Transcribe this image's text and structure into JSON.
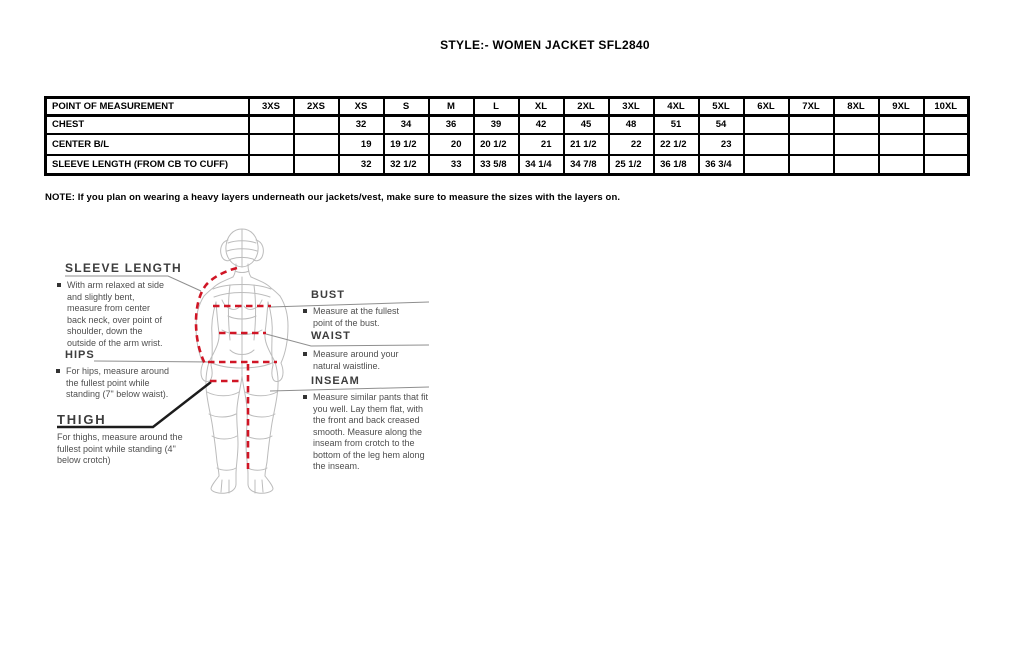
{
  "title": "STYLE:- WOMEN JACKET   SFL2840",
  "note": "NOTE: If you plan on wearing a heavy layers underneath our jackets/vest, make sure to measure the sizes with the layers on.",
  "size_chart": {
    "columns": [
      "POINT OF MEASUREMENT",
      "3XS",
      "2XS",
      "XS",
      "S",
      "M",
      "L",
      "XL",
      "2XL",
      "3XL",
      "4XL",
      "5XL",
      "6XL",
      "7XL",
      "8XL",
      "9XL",
      "10XL"
    ],
    "rows": [
      {
        "label": "CHEST",
        "values": [
          "",
          "",
          "32",
          "34",
          "36",
          "39",
          "42",
          "45",
          "48",
          "51",
          "54",
          "",
          "",
          "",
          "",
          ""
        ]
      },
      {
        "label": "CENTER B/L",
        "values": [
          "",
          "",
          "19",
          "19 1/2",
          "20",
          "20 1/2",
          "21",
          "21 1/2",
          "22",
          "22 1/2",
          "23",
          "",
          "",
          "",
          "",
          ""
        ]
      },
      {
        "label": "SLEEVE LENGTH (FROM CB TO CUFF)",
        "values": [
          "",
          "",
          "32",
          "32 1/2",
          "33",
          "33 5/8",
          "34 1/4",
          "34 7/8",
          "25 1/2",
          "36 1/8",
          "36 3/4",
          "",
          "",
          "",
          "",
          ""
        ]
      }
    ]
  },
  "measurement_guide": {
    "sleeve_length": {
      "heading": "SLEEVE LENGTH",
      "description": "With arm relaxed at side and slightly bent, measure from center back neck, over point of shoulder, down the outside of the arm wrist."
    },
    "hips": {
      "heading": "HIPS",
      "description": "For hips, measure around the fullest point while standing (7\" below waist)."
    },
    "thigh": {
      "heading": "THIGH",
      "description": "For thighs, measure around the fullest point while standing (4\" below crotch)"
    },
    "bust": {
      "heading": "BUST",
      "description": "Measure at the fullest point of the bust."
    },
    "waist": {
      "heading": "WAIST",
      "description": "Measure around your natural waistline."
    },
    "inseam": {
      "heading": "INSEAM",
      "description": "Measure similar pants that fit you well. Lay them flat, with the front and back creased smooth. Measure along the inseam from crotch to the bottom of the leg hem along the inseam."
    }
  },
  "colors": {
    "measure_line_red": "#d01525",
    "figure_gray": "#bcbcbc",
    "connector_gray": "#8f8f8f",
    "thigh_pointer_black": "#1c1c1c"
  }
}
